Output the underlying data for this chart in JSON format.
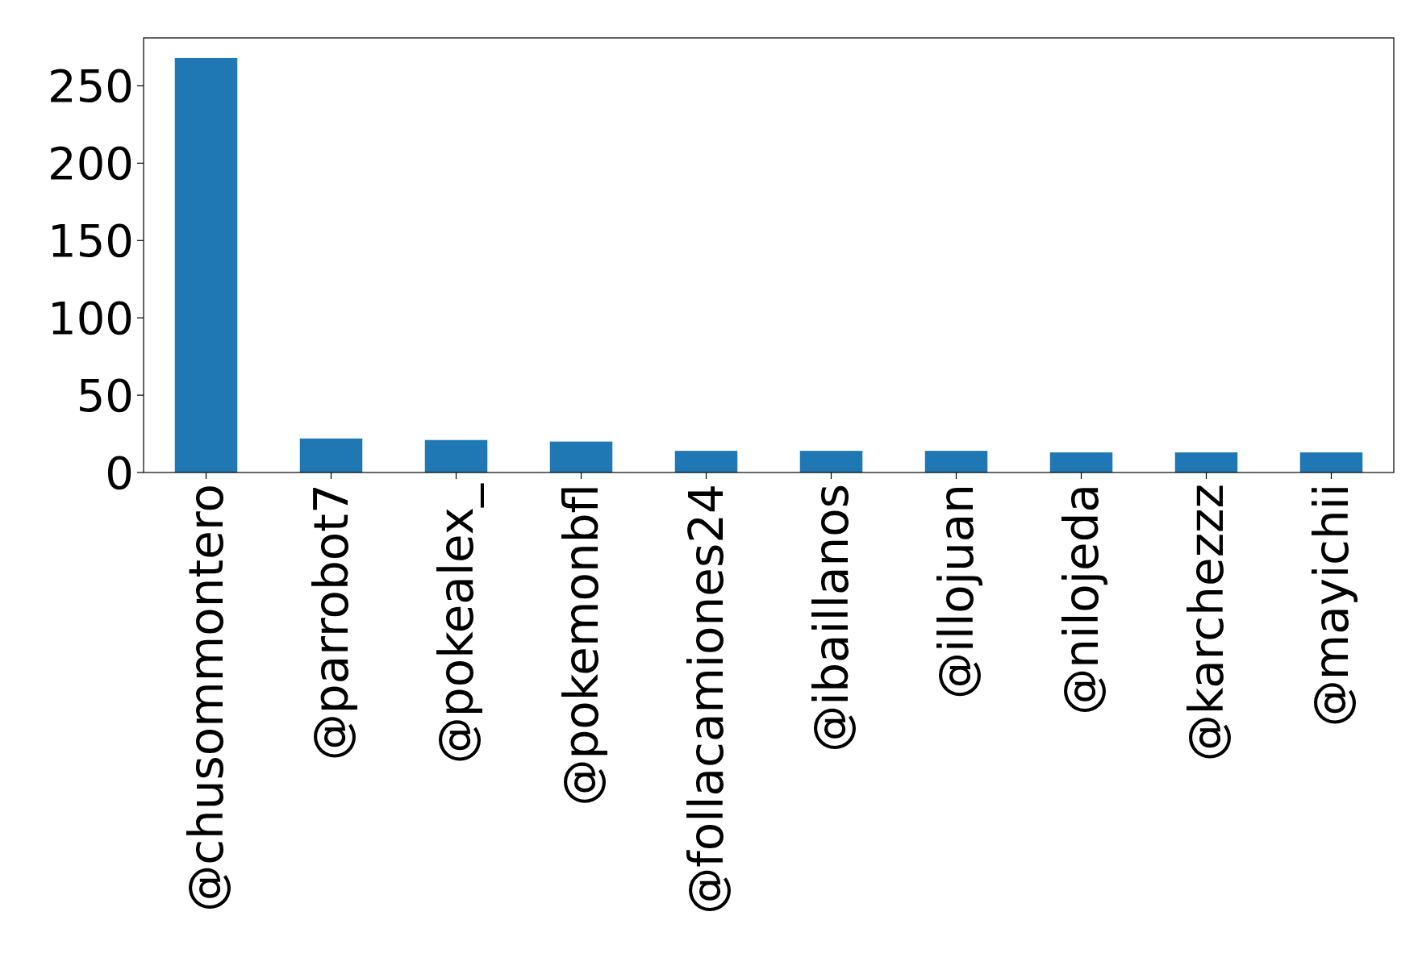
{
  "chart_data": {
    "type": "bar",
    "categories": [
      "@chusommontero",
      "@parrobot7",
      "@pokealex_",
      "@pokemonbfl",
      "@follacamiones24",
      "@ibaillanos",
      "@illojuan",
      "@nilojeda",
      "@karchezzz",
      "@mayichii"
    ],
    "values": [
      268,
      22,
      21,
      20,
      14,
      14,
      14,
      13,
      13,
      13
    ],
    "color": "#1f77b4",
    "ylim": [
      0,
      281
    ],
    "yticks": [
      0,
      50,
      100,
      150,
      200,
      250
    ],
    "grid": false
  }
}
